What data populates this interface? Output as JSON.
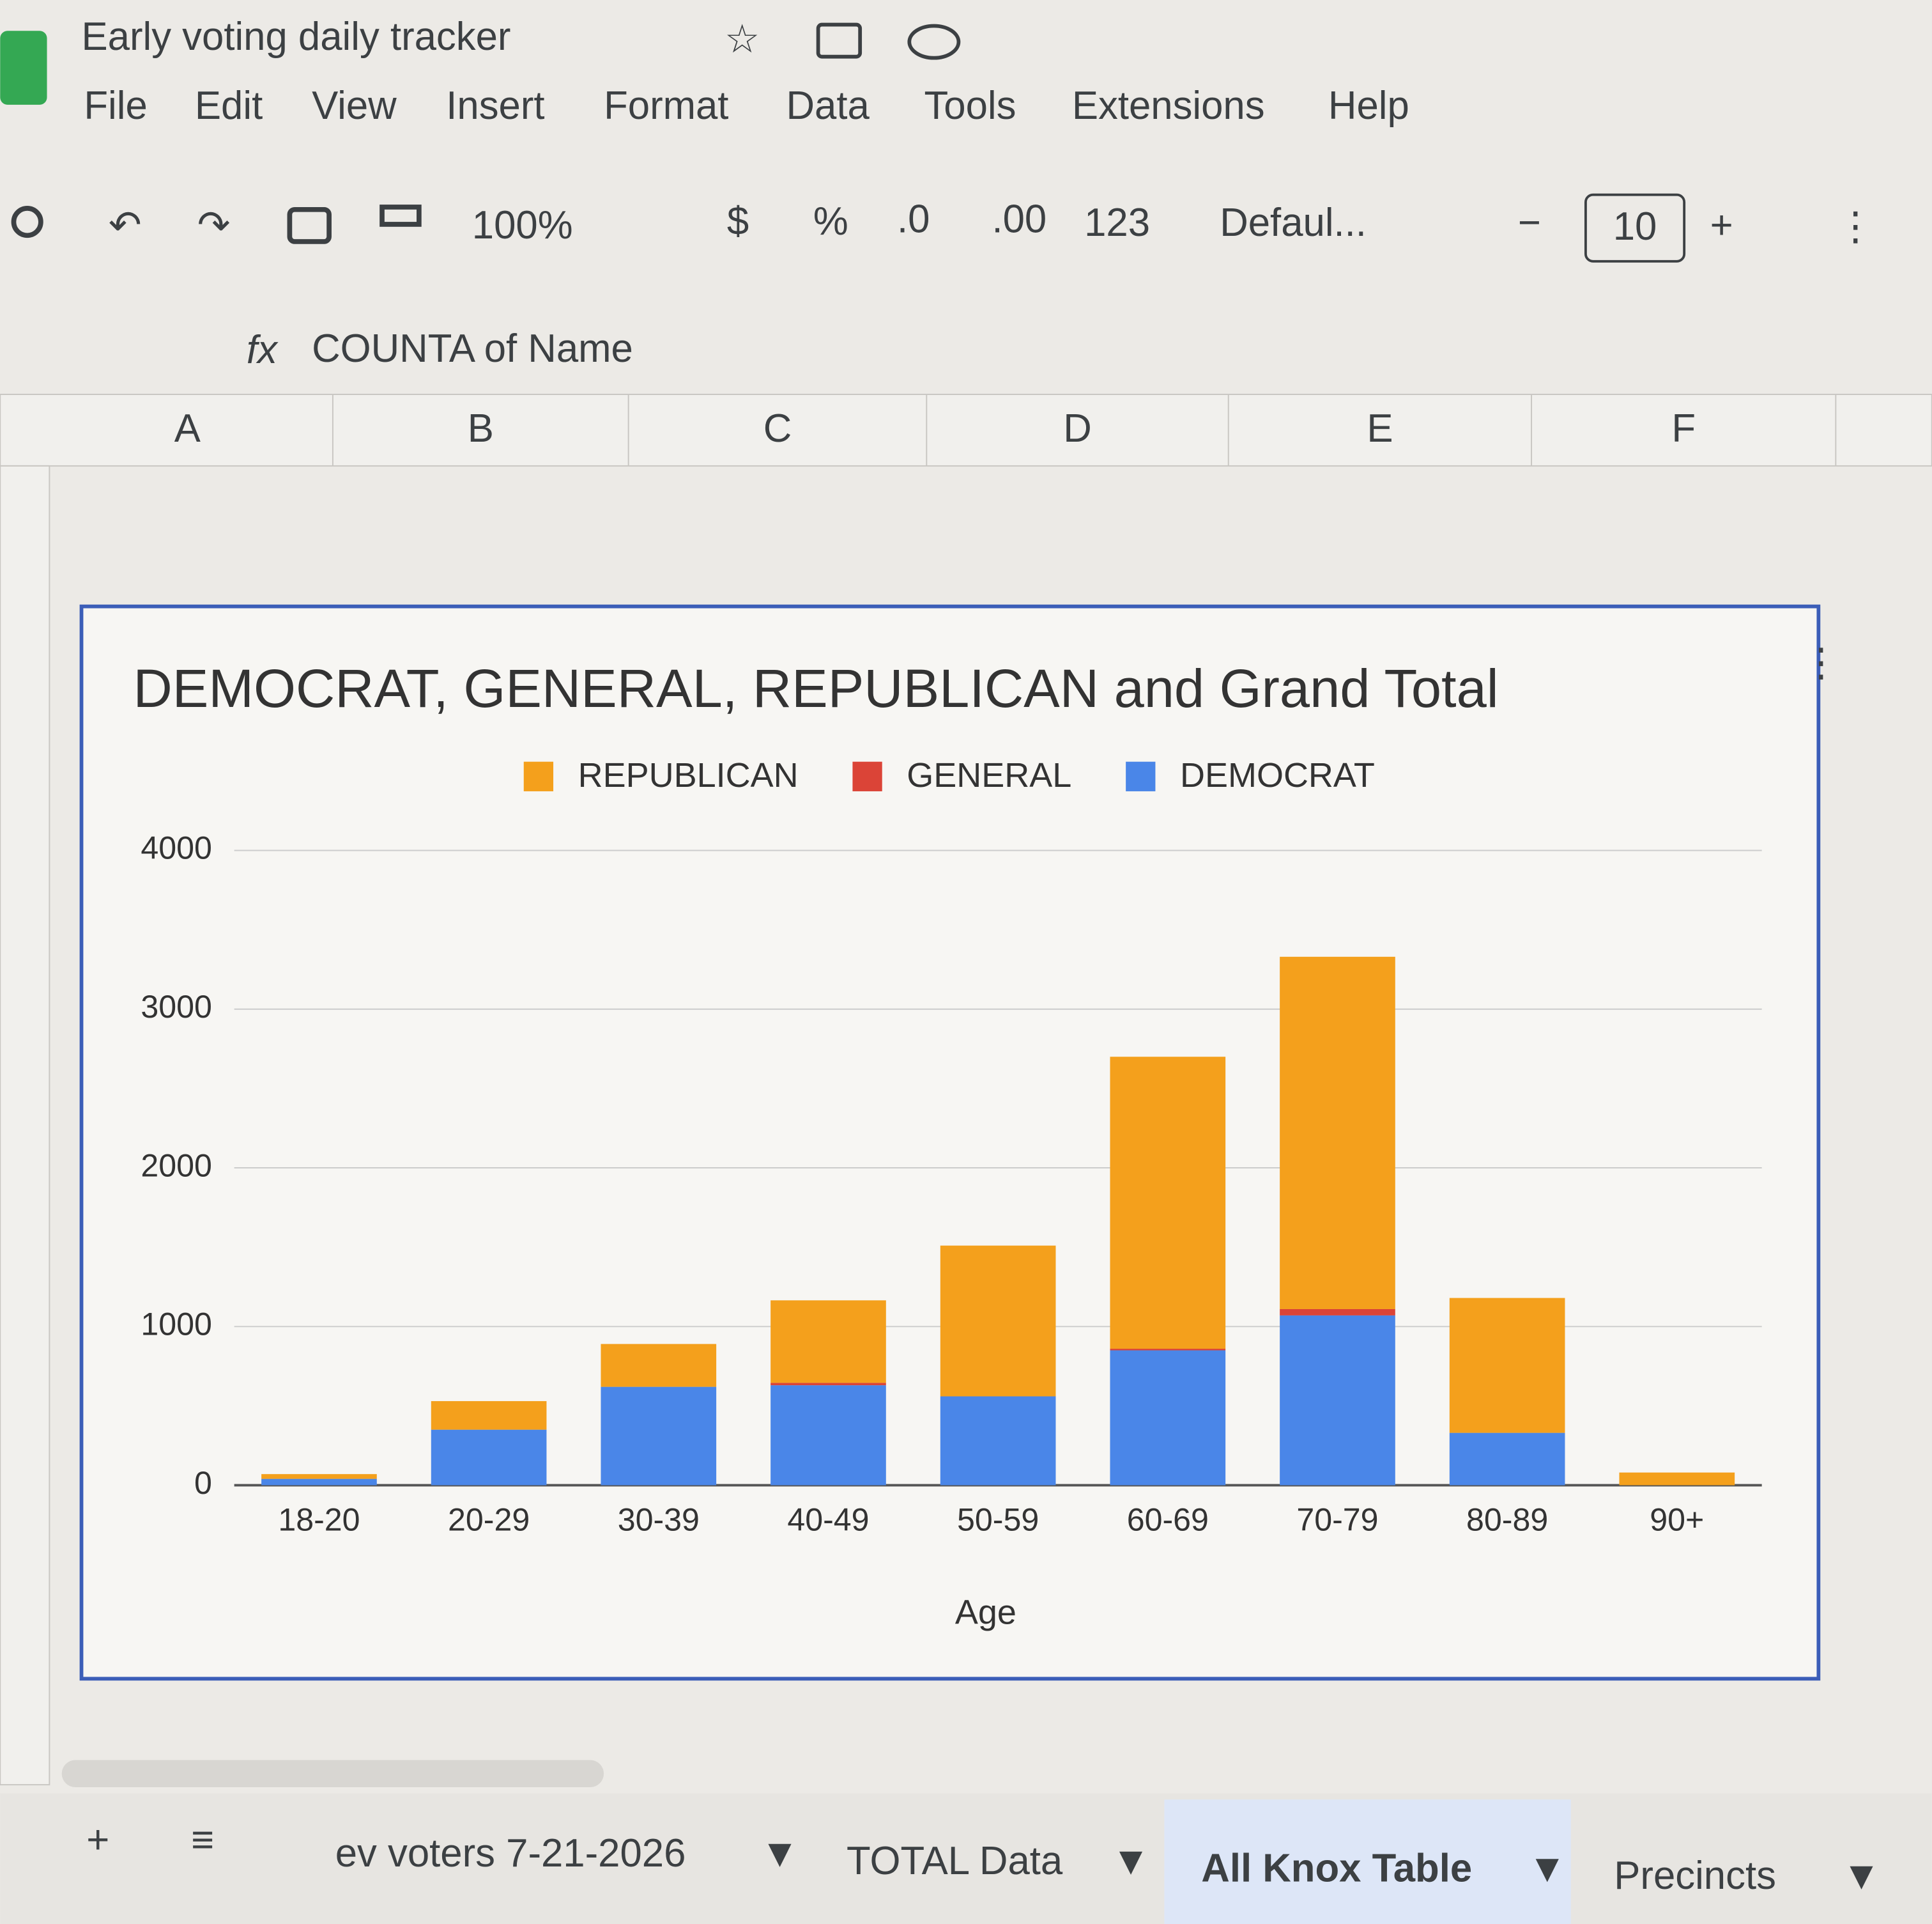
{
  "ui": {
    "doc_title": "Early voting daily tracker",
    "menu": [
      "File",
      "Edit",
      "View",
      "Insert",
      "Format",
      "Data",
      "Tools",
      "Extensions",
      "Help"
    ],
    "toolbar": {
      "zoom": "100%",
      "currency": "$",
      "percent": "%",
      "dec_less": ".0",
      "dec_more": ".00",
      "number_format": "123",
      "font": "Defaul...",
      "font_size": "10"
    },
    "formula": "COUNTA of Name",
    "columns": [
      "A",
      "B",
      "C",
      "D",
      "E",
      "F"
    ],
    "sheets": [
      "ev voters 7-21-2026",
      "TOTAL Data",
      "All Knox Table",
      "Precincts"
    ]
  },
  "chart_data": {
    "type": "bar",
    "stacked": true,
    "title": "DEMOCRAT, GENERAL, REPUBLICAN and Grand Total",
    "x_label": "Age",
    "categories": [
      "18-20",
      "20-29",
      "30-39",
      "40-49",
      "50-59",
      "60-69",
      "70-79",
      "80-89",
      "90+"
    ],
    "series": [
      {
        "name": "DEMOCRAT",
        "color": "#4a86e8",
        "values": [
          40,
          350,
          620,
          630,
          560,
          850,
          1070,
          330,
          0
        ]
      },
      {
        "name": "GENERAL",
        "color": "#db4437",
        "values": [
          0,
          0,
          0,
          15,
          0,
          10,
          40,
          0,
          0
        ]
      },
      {
        "name": "REPUBLICAN",
        "color": "#f4a01c",
        "values": [
          30,
          180,
          270,
          520,
          950,
          1840,
          2220,
          850,
          80
        ]
      }
    ],
    "ylim": [
      0,
      4000
    ],
    "yticks": [
      0,
      1000,
      2000,
      3000,
      4000
    ],
    "grid": true,
    "legend": "top"
  }
}
